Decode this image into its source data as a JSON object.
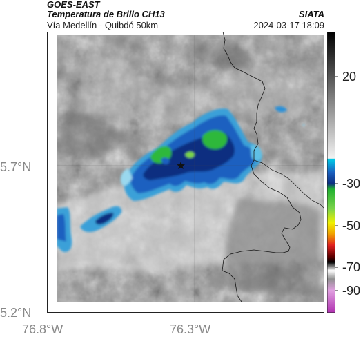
{
  "header": {
    "satellite": "GOES-EAST",
    "product": "Temperatura de Brillo CH13",
    "region": "Vía Medellín - Quibdó 50km",
    "source": "SIATA",
    "datetime": "2024-03-17 18:09"
  },
  "map": {
    "lat_ticks": [
      "5.7°N",
      "5.2°N"
    ],
    "lon_ticks": [
      "76.8°W",
      "76.3°W"
    ],
    "marker": "star"
  },
  "colorbar": {
    "ticks": [
      "20",
      "-30",
      "-50",
      "-70",
      "-90"
    ],
    "colors": {
      "warm": "#8c8c8c",
      "cyan": "#00c8e6",
      "blue": "#1040b0",
      "green": "#20b030",
      "yellow": "#f0f000",
      "red": "#e02020",
      "black": "#000000",
      "magenta": "#b030b0"
    }
  }
}
